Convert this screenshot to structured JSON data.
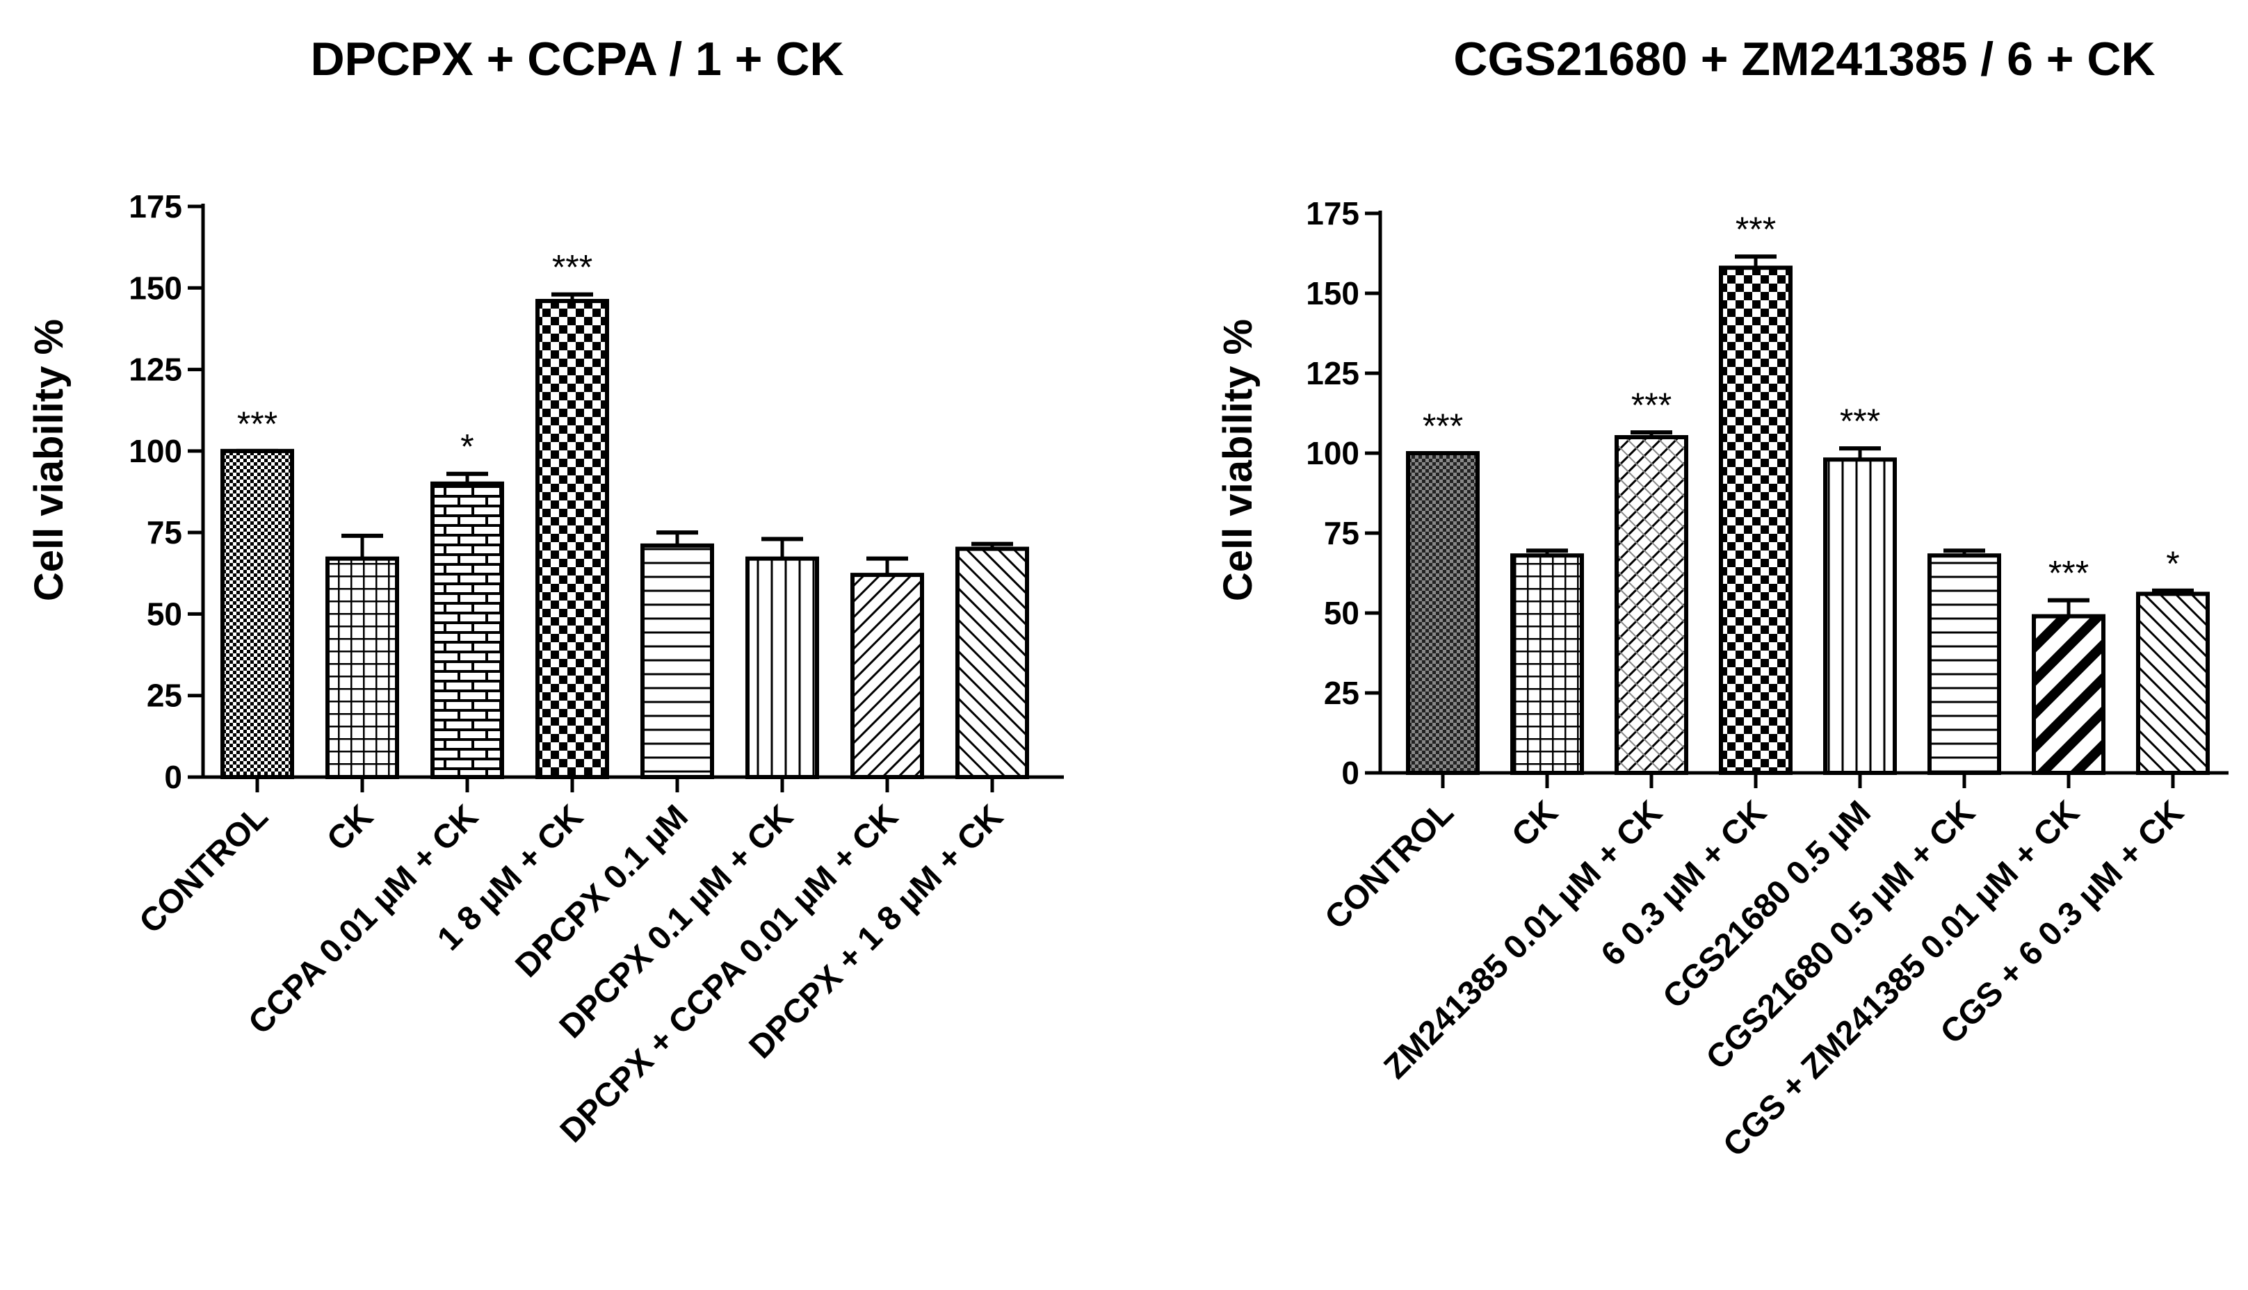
{
  "chart_data": [
    {
      "type": "bar",
      "title": "DPCPX + CCPA / 1 + CK",
      "xlabel": "",
      "ylabel": "Cell viability %",
      "ylim": [
        0,
        175
      ],
      "yticks": [
        0,
        25,
        50,
        75,
        100,
        125,
        150,
        175
      ],
      "ytick_labels": [
        "0",
        "25",
        "50",
        "75",
        "100",
        "125",
        "150",
        "175"
      ],
      "grid": false,
      "categories": [
        "CONTROL",
        "CK",
        "CCPA 0.01 µM + CK",
        "1 8 µM + CK",
        "DPCPX 0.1 µM",
        "DPCPX 0.1 µM + CK",
        "DPCPX + CCPA 0.01 µM + CK",
        "DPCPX + 1 8 µM + CK"
      ],
      "values": [
        100,
        67,
        90,
        146,
        71,
        67,
        62,
        70
      ],
      "errors": [
        0,
        7,
        3,
        2,
        4,
        6,
        5,
        1.5
      ],
      "significance": [
        "***",
        "",
        "*",
        "***",
        "",
        "",
        "",
        ""
      ],
      "patterns": [
        "fine-check",
        "grid",
        "brick",
        "checker",
        "horizontal",
        "vertical",
        "diagonal-right",
        "diagonal-left"
      ]
    },
    {
      "type": "bar",
      "title": "CGS21680 + ZM241385 / 6 + CK",
      "xlabel": "",
      "ylabel": "Cell viability %",
      "ylim": [
        0,
        175
      ],
      "yticks": [
        0,
        25,
        50,
        75,
        100,
        125,
        150,
        175
      ],
      "ytick_labels": [
        "0",
        "25",
        "50",
        "75",
        "100",
        "125",
        "150",
        "175"
      ],
      "grid": false,
      "categories": [
        "CONTROL",
        "CK",
        "ZM241385 0.01  µM + CK",
        "6 0.3  µM + CK",
        "CGS21680 0.5  µM",
        "CGS21680 0.5  µM + CK",
        "CGS + ZM241385 0.01  µM + CK",
        "CGS + 6 0.3  µM + CK"
      ],
      "values": [
        100,
        68,
        105,
        158,
        98,
        68,
        49,
        56
      ],
      "errors": [
        0,
        1.5,
        1.5,
        3.5,
        3.5,
        1.5,
        5,
        1
      ],
      "significance": [
        "***",
        "",
        "***",
        "***",
        "***",
        "",
        "***",
        "*"
      ],
      "patterns": [
        "fine-check-dash",
        "grid",
        "crosshatch",
        "checker",
        "vertical",
        "horizontal",
        "diagonal-bold",
        "diagonal-left"
      ]
    }
  ]
}
